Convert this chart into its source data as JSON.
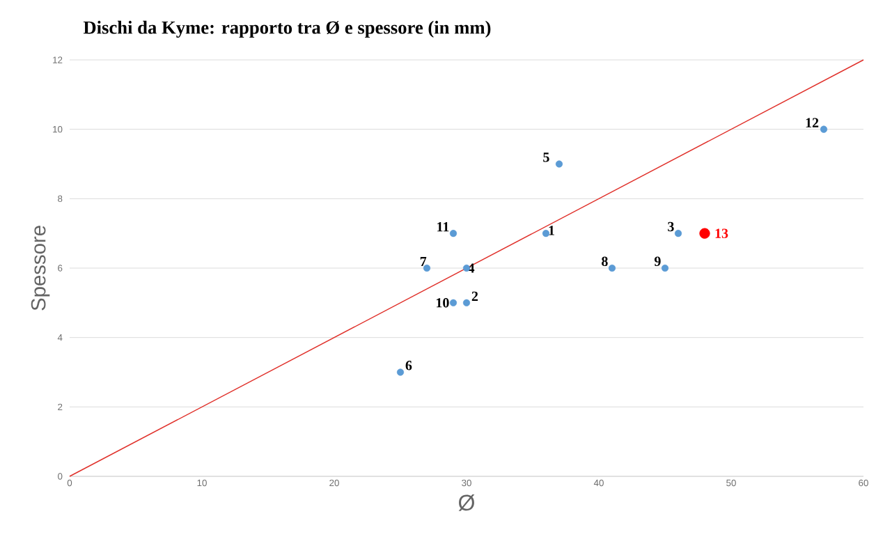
{
  "chart_data": {
    "type": "scatter",
    "title": "Dischi da Kyme: rapporto tra Ø e spessore (in mm)",
    "xlabel": "Ø",
    "ylabel": "Spessore",
    "xlim": [
      0,
      60
    ],
    "ylim": [
      0,
      12
    ],
    "xticks": [
      0,
      10,
      20,
      30,
      40,
      50,
      60
    ],
    "yticks": [
      0,
      2,
      4,
      6,
      8,
      10,
      12
    ],
    "grid": "y",
    "series": [
      {
        "color": "#5b9bd5",
        "marker": "circle",
        "x": [
          36,
          30,
          46,
          30,
          37,
          25,
          27,
          41,
          45,
          29,
          29,
          57
        ],
        "values": [
          7,
          5,
          7,
          6,
          9,
          3,
          6,
          6,
          6,
          5,
          7,
          10
        ]
      },
      {
        "name": "13",
        "color": "#ff0000",
        "marker": "circle",
        "x": [
          48
        ],
        "values": [
          7
        ]
      },
      {
        "type": "line",
        "color": "#e0302a",
        "marker": "none",
        "x": [
          0,
          60
        ],
        "values": [
          0,
          12
        ]
      }
    ],
    "annotations": [
      {
        "text": "1",
        "x": 36,
        "y": 7
      },
      {
        "text": "2",
        "x": 30,
        "y": 5
      },
      {
        "text": "3",
        "x": 46,
        "y": 7
      },
      {
        "text": "4",
        "x": 30,
        "y": 6
      },
      {
        "text": "5",
        "x": 37,
        "y": 9
      },
      {
        "text": "6",
        "x": 25,
        "y": 3
      },
      {
        "text": "7",
        "x": 27,
        "y": 6
      },
      {
        "text": "8",
        "x": 41,
        "y": 6
      },
      {
        "text": "9",
        "x": 45,
        "y": 6
      },
      {
        "text": "10",
        "x": 29,
        "y": 5
      },
      {
        "text": "11",
        "x": 29,
        "y": 7
      },
      {
        "text": "12",
        "x": 57,
        "y": 10
      }
    ]
  }
}
